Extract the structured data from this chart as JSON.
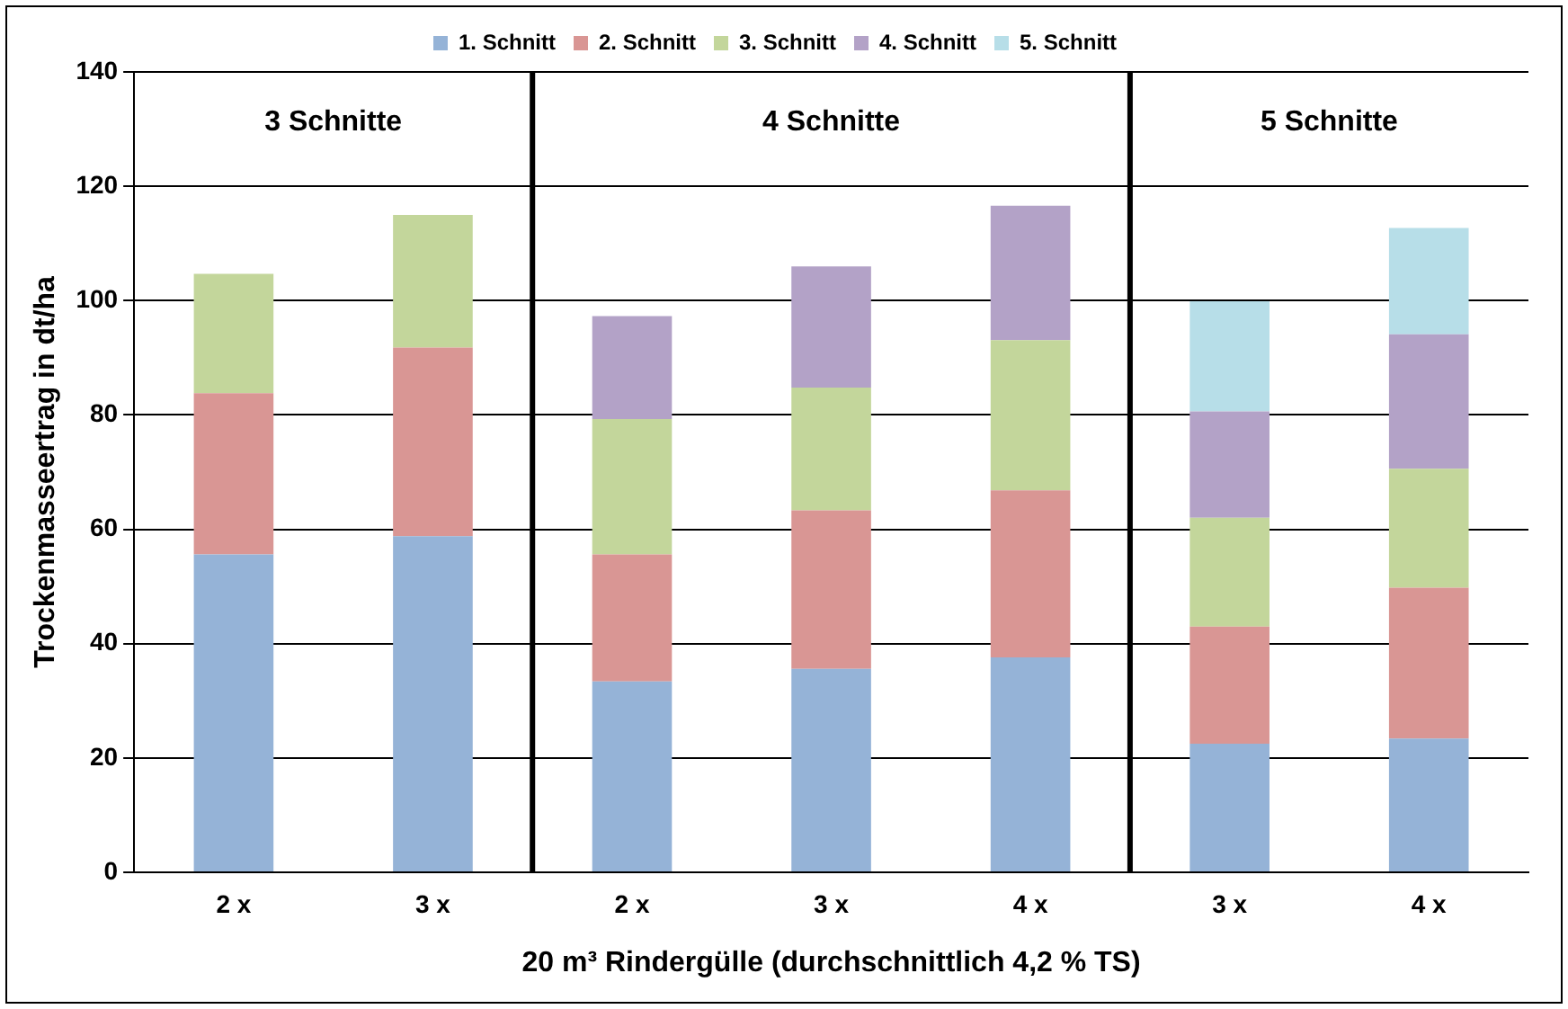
{
  "chart_data": {
    "type": "bar",
    "stacked": true,
    "xlabel": "20 m³ Rindergülle (durchschnittlich 4,2 % TS)",
    "ylabel": "Trockenmasseertrag in dt/ha",
    "categories": [
      "2 x",
      "3 x",
      "2 x",
      "3 x",
      "4 x",
      "3 x",
      "4 x"
    ],
    "series": [
      {
        "name": "1. Schnitt",
        "color": "#95b3d7",
        "values": [
          55.6,
          58.8,
          33.4,
          35.6,
          37.6,
          22.5,
          23.4
        ]
      },
      {
        "name": "2. Schnitt",
        "color": "#d99694",
        "values": [
          28.2,
          33,
          22.2,
          27.7,
          29.2,
          20.5,
          26.4
        ]
      },
      {
        "name": "3. Schnitt",
        "color": "#c3d69b",
        "values": [
          20.9,
          23.2,
          23.7,
          21.5,
          26.3,
          19,
          20.8
        ]
      },
      {
        "name": "4. Schnitt",
        "color": "#b3a2c7",
        "values": [
          null,
          null,
          18,
          21.2,
          23.5,
          18.6,
          23.5
        ]
      },
      {
        "name": "5. Schnitt",
        "color": "#b7dee8",
        "values": [
          null,
          null,
          null,
          null,
          null,
          19.3,
          18.6
        ]
      }
    ],
    "ylim": [
      0,
      140
    ],
    "yticks": [
      0,
      20,
      40,
      60,
      80,
      100,
      120,
      140
    ],
    "grid": "y",
    "legend": "top",
    "annotations": [
      "3 Schnitte",
      "4 Schnitte",
      "5 Schnitte"
    ]
  }
}
